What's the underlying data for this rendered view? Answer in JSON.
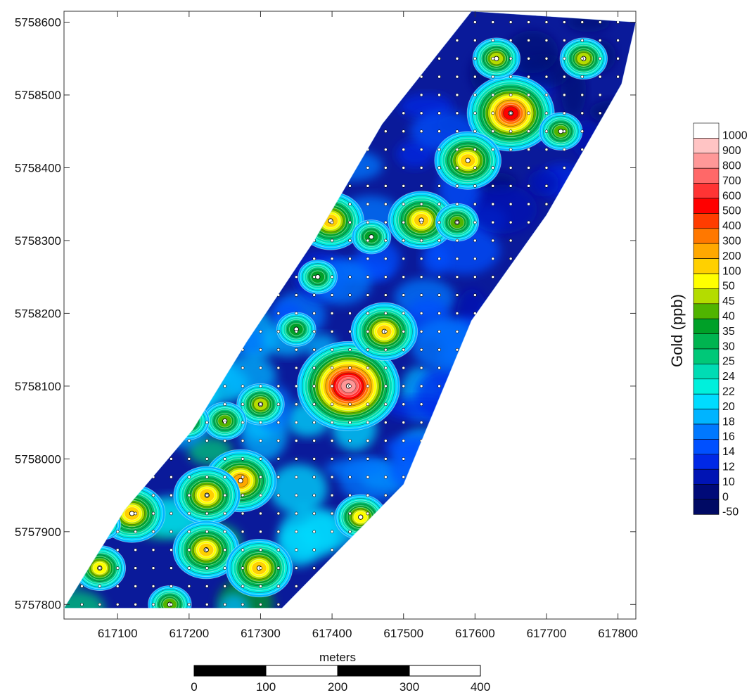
{
  "map": {
    "x_unit_label": "meters",
    "x_ticks": [
      "617100",
      "617200",
      "617300",
      "617400",
      "617500",
      "617600",
      "617700",
      "617800"
    ],
    "y_ticks": [
      "5758600",
      "5758500",
      "5758400",
      "5758300",
      "5758200",
      "5758100",
      "5758000",
      "5757900",
      "5757800"
    ],
    "x_range": [
      617025,
      617825
    ],
    "y_range": [
      5757780,
      5758615
    ]
  },
  "legend": {
    "title": "Gold (ppb)",
    "levels": [
      {
        "label": "1000",
        "color": "#ffffff"
      },
      {
        "label": "900",
        "color": "#ffc4c4"
      },
      {
        "label": "800",
        "color": "#ff9898"
      },
      {
        "label": "700",
        "color": "#ff6868"
      },
      {
        "label": "600",
        "color": "#ff3434"
      },
      {
        "label": "500",
        "color": "#ff0000"
      },
      {
        "label": "400",
        "color": "#ff3c00"
      },
      {
        "label": "300",
        "color": "#ff7800"
      },
      {
        "label": "200",
        "color": "#ffa800"
      },
      {
        "label": "100",
        "color": "#ffd000"
      },
      {
        "label": "50",
        "color": "#ffff00"
      },
      {
        "label": "45",
        "color": "#b4dc00"
      },
      {
        "label": "40",
        "color": "#50b400"
      },
      {
        "label": "35",
        "color": "#00a028"
      },
      {
        "label": "30",
        "color": "#00b450"
      },
      {
        "label": "25",
        "color": "#00c878"
      },
      {
        "label": "24",
        "color": "#00dcb4"
      },
      {
        "label": "22",
        "color": "#00f0dc"
      },
      {
        "label": "20",
        "color": "#00dcff"
      },
      {
        "label": "18",
        "color": "#00b4ff"
      },
      {
        "label": "16",
        "color": "#0078ff"
      },
      {
        "label": "14",
        "color": "#0050ff"
      },
      {
        "label": "12",
        "color": "#0028e6"
      },
      {
        "label": "10",
        "color": "#0014b4"
      },
      {
        "label": "0",
        "color": "#000a78"
      },
      {
        "label": "-50",
        "color": "#000a64"
      }
    ]
  },
  "scale_bar": {
    "labels": [
      "0",
      "100",
      "200",
      "300",
      "400"
    ]
  },
  "chart_data": {
    "type": "heatmap",
    "title": "",
    "xlabel": "meters",
    "ylabel": "",
    "xlim": [
      617025,
      617825
    ],
    "ylim": [
      5757780,
      5758615
    ],
    "colorbar_label": "Gold (ppb)",
    "survey_area_polygon": [
      [
        617025,
        5757795
      ],
      [
        617330,
        5757795
      ],
      [
        617500,
        5757965
      ],
      [
        617595,
        5758190
      ],
      [
        617700,
        5758335
      ],
      [
        617805,
        5758515
      ],
      [
        617825,
        5758600
      ],
      [
        617595,
        5758615
      ],
      [
        617470,
        5758460
      ],
      [
        617375,
        5758300
      ],
      [
        617280,
        5758160
      ],
      [
        617205,
        5758040
      ],
      [
        617110,
        5757930
      ]
    ],
    "anomalies": [
      {
        "x": 617650,
        "y": 5758475,
        "value": 500
      },
      {
        "x": 617423,
        "y": 5758100,
        "value": 800
      },
      {
        "x": 617473,
        "y": 5758175,
        "value": 100
      },
      {
        "x": 617590,
        "y": 5758410,
        "value": 100
      },
      {
        "x": 617525,
        "y": 5758328,
        "value": 100
      },
      {
        "x": 617398,
        "y": 5758327,
        "value": 100
      },
      {
        "x": 617272,
        "y": 5757970,
        "value": 200
      },
      {
        "x": 617225,
        "y": 5757950,
        "value": 150
      },
      {
        "x": 617224,
        "y": 5757875,
        "value": 100
      },
      {
        "x": 617298,
        "y": 5757850,
        "value": 100
      },
      {
        "x": 617120,
        "y": 5757925,
        "value": 100
      },
      {
        "x": 617075,
        "y": 5757850,
        "value": 60
      },
      {
        "x": 617440,
        "y": 5757920,
        "value": 60
      },
      {
        "x": 617630,
        "y": 5758550,
        "value": 45
      },
      {
        "x": 617752,
        "y": 5758550,
        "value": 45
      },
      {
        "x": 617720,
        "y": 5758450,
        "value": 40
      },
      {
        "x": 617300,
        "y": 5758075,
        "value": 45
      },
      {
        "x": 617250,
        "y": 5758052,
        "value": 40
      },
      {
        "x": 617198,
        "y": 5758052,
        "value": 40
      },
      {
        "x": 617173,
        "y": 5757800,
        "value": 40
      },
      {
        "x": 617350,
        "y": 5758178,
        "value": 35
      },
      {
        "x": 617380,
        "y": 5758250,
        "value": 35
      },
      {
        "x": 617575,
        "y": 5758325,
        "value": 40
      },
      {
        "x": 617455,
        "y": 5758305,
        "value": 35
      },
      {
        "x": 617080,
        "y": 5757910,
        "value": 30
      }
    ]
  }
}
